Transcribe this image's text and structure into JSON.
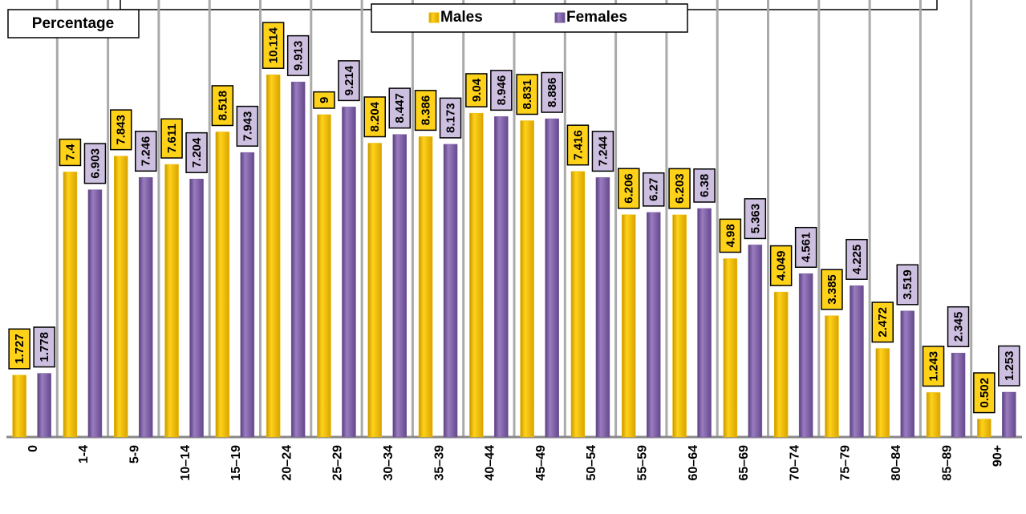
{
  "chart_data": {
    "type": "bar",
    "y_label": "Percentage",
    "categories": [
      "0",
      "1-4",
      "5-9",
      "10–14",
      "15–19",
      "20–24",
      "25–29",
      "30–34",
      "35–39",
      "40–44",
      "45–49",
      "50–54",
      "55–59",
      "60–64",
      "65–69",
      "70–74",
      "75–79",
      "80–84",
      "85–89",
      "90+"
    ],
    "series": [
      {
        "name": "Males",
        "color": "#f2bd00",
        "values": [
          1.727,
          7.4,
          7.843,
          7.611,
          8.518,
          10.114,
          9,
          8.204,
          8.386,
          9.04,
          8.831,
          7.416,
          6.206,
          6.203,
          4.98,
          4.049,
          3.385,
          2.472,
          1.243,
          0.502
        ]
      },
      {
        "name": "Females",
        "color": "#7b5ba0",
        "values": [
          1.778,
          6.903,
          7.246,
          7.204,
          7.943,
          9.913,
          9.214,
          8.447,
          8.173,
          8.946,
          8.886,
          7.244,
          6.27,
          6.38,
          5.363,
          4.561,
          4.225,
          3.519,
          2.345,
          1.253
        ]
      }
    ],
    "ylim": [
      0,
      12.2
    ],
    "grid": true,
    "legend": "top"
  }
}
